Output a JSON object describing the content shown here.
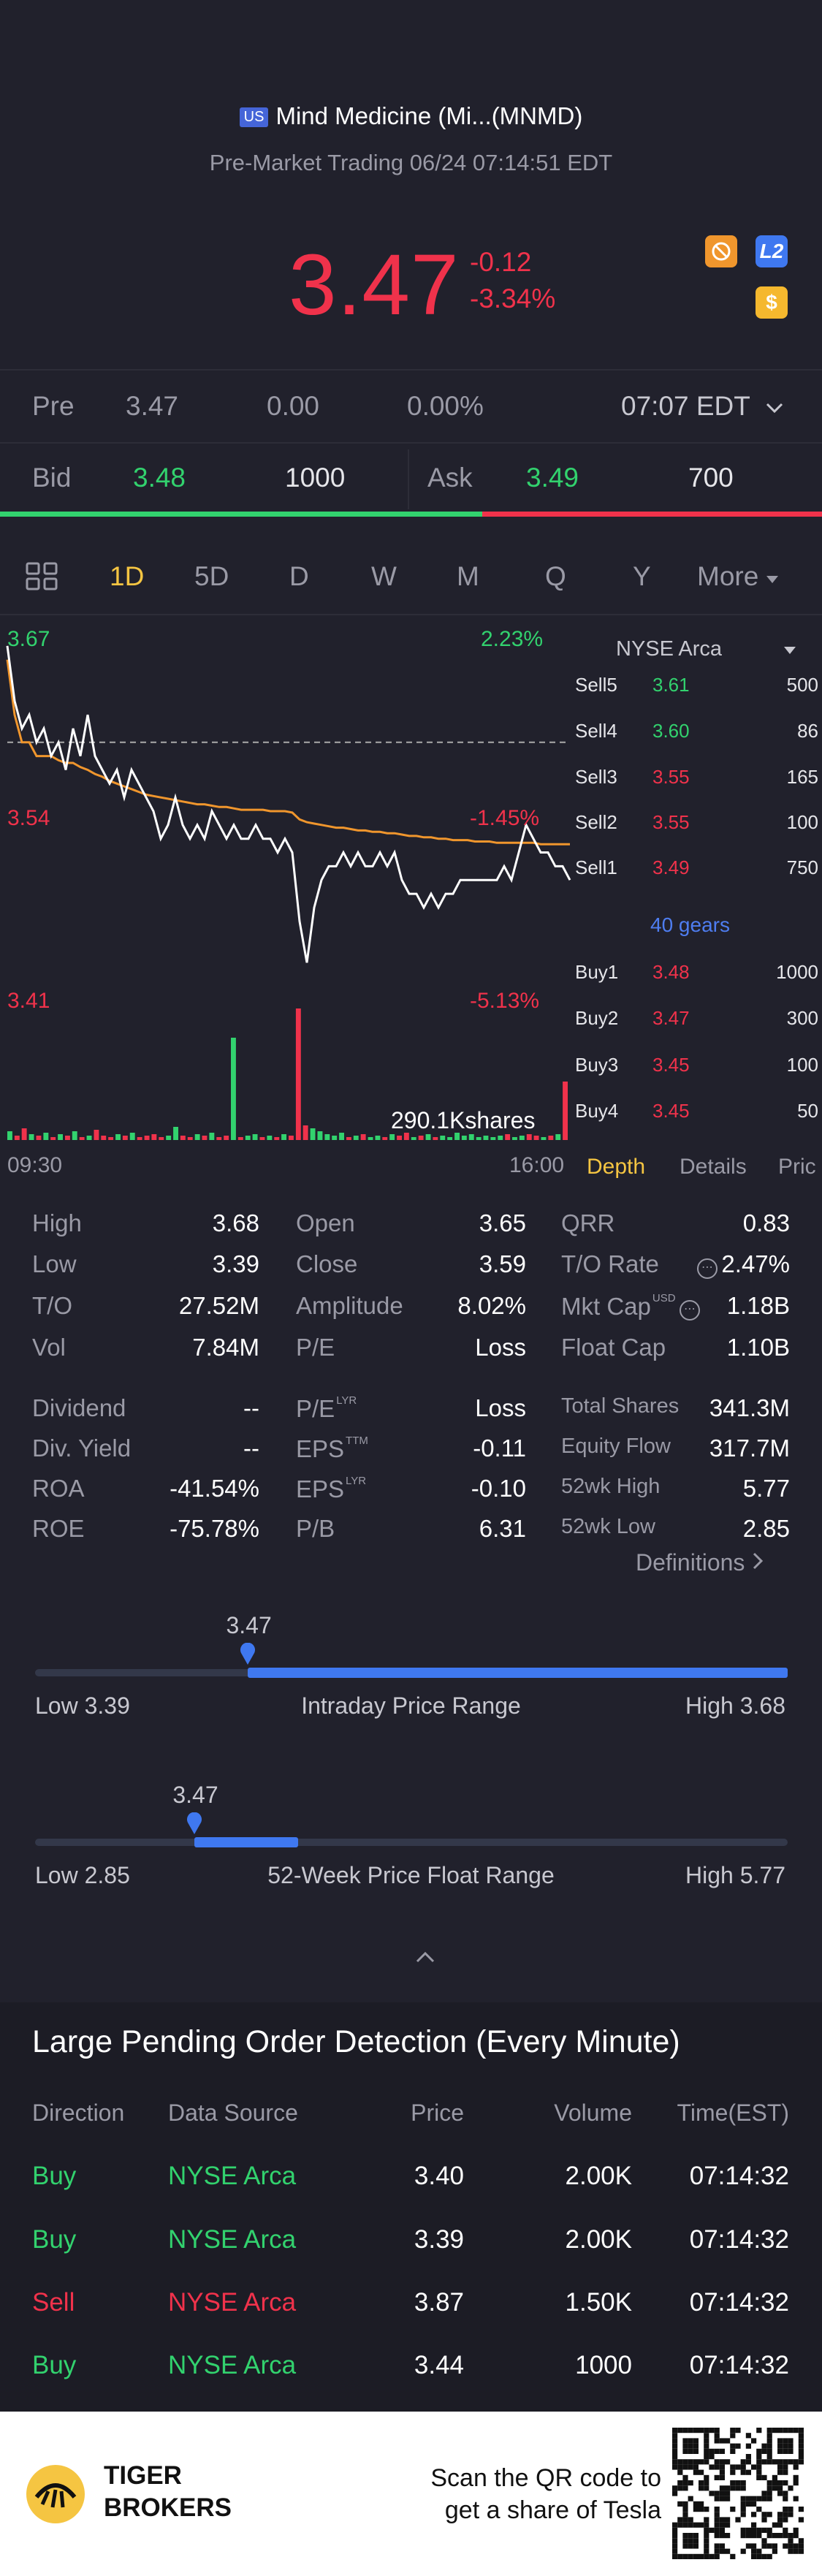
{
  "header": {
    "flag": "US",
    "title": "Mind Medicine (Mi...(MNMD)",
    "subtitle": "Pre-Market Trading 06/24 07:14:51 EDT",
    "price": "3.47",
    "change": "-0.12",
    "change_pct": "-3.34%",
    "l2_label": "L2",
    "dollar_label": "$"
  },
  "pre_row": {
    "label": "Pre",
    "price": "3.47",
    "change": "0.00",
    "pct": "0.00%",
    "time": "07:07 EDT"
  },
  "bid_row": {
    "bid_label": "Bid",
    "bid_price": "3.48",
    "bid_size": "1000",
    "ask_label": "Ask",
    "ask_price": "3.49",
    "ask_size": "700"
  },
  "tabs": [
    "1D",
    "5D",
    "D",
    "W",
    "M",
    "Q",
    "Y",
    "More"
  ],
  "active_tab": "1D",
  "chart_data": {
    "type": "line",
    "ylim": [
      3.41,
      3.67
    ],
    "reference_close": 3.59,
    "labels": {
      "y_top": "3.67",
      "y_mid": "3.54",
      "y_bot": "3.41",
      "pct_top": "2.23%",
      "pct_mid": "-1.45%",
      "pct_bot": "-5.13%",
      "volume_label": "290.1Kshares",
      "x_start": "09:30",
      "x_end": "16:00"
    },
    "price": [
      3.66,
      3.62,
      3.6,
      3.61,
      3.59,
      3.6,
      3.58,
      3.59,
      3.57,
      3.6,
      3.58,
      3.61,
      3.58,
      3.57,
      3.56,
      3.57,
      3.55,
      3.57,
      3.56,
      3.55,
      3.54,
      3.52,
      3.53,
      3.55,
      3.53,
      3.52,
      3.53,
      3.52,
      3.54,
      3.53,
      3.52,
      3.53,
      3.52,
      3.52,
      3.53,
      3.52,
      3.52,
      3.51,
      3.52,
      3.51,
      3.46,
      3.43,
      3.47,
      3.49,
      3.5,
      3.5,
      3.51,
      3.5,
      3.51,
      3.5,
      3.5,
      3.51,
      3.5,
      3.51,
      3.49,
      3.48,
      3.48,
      3.47,
      3.48,
      3.47,
      3.48,
      3.48,
      3.49,
      3.49,
      3.49,
      3.49,
      3.49,
      3.49,
      3.5,
      3.49,
      3.51,
      3.53,
      3.52,
      3.51,
      3.51,
      3.5,
      3.5,
      3.49
    ],
    "avg": [
      3.65,
      3.61,
      3.59,
      3.59,
      3.58,
      3.58,
      3.58,
      3.577,
      3.575,
      3.575,
      3.572,
      3.57,
      3.567,
      3.565,
      3.562,
      3.56,
      3.558,
      3.556,
      3.554,
      3.552,
      3.551,
      3.55,
      3.549,
      3.548,
      3.547,
      3.546,
      3.545,
      3.545,
      3.544,
      3.543,
      3.543,
      3.542,
      3.541,
      3.541,
      3.541,
      3.541,
      3.54,
      3.54,
      3.54,
      3.539,
      3.534,
      3.532,
      3.531,
      3.53,
      3.529,
      3.528,
      3.528,
      3.527,
      3.526,
      3.526,
      3.525,
      3.525,
      3.524,
      3.524,
      3.523,
      3.522,
      3.522,
      3.521,
      3.521,
      3.52,
      3.52,
      3.519,
      3.519,
      3.519,
      3.518,
      3.518,
      3.518,
      3.517,
      3.517,
      3.517,
      3.517,
      3.517,
      3.517,
      3.516,
      3.516,
      3.516,
      3.516,
      3.516
    ],
    "volume": [
      6,
      3,
      8,
      4,
      3,
      5,
      2,
      4,
      3,
      6,
      2,
      3,
      7,
      3,
      2,
      4,
      3,
      5,
      2,
      3,
      4,
      2,
      3,
      9,
      3,
      2,
      4,
      3,
      5,
      2,
      3,
      70,
      2,
      3,
      4,
      2,
      3,
      2,
      4,
      3,
      90,
      10,
      8,
      6,
      4,
      3,
      5,
      2,
      3,
      4,
      2,
      3,
      2,
      4,
      3,
      5,
      2,
      3,
      4,
      2,
      3,
      2,
      5,
      3,
      4,
      2,
      3,
      2,
      3,
      4,
      2,
      3,
      4,
      3,
      2,
      3,
      4,
      40
    ]
  },
  "order_book": {
    "exchange": "NYSE Arca",
    "sells": [
      {
        "label": "Sell5",
        "price": "3.61",
        "size": "500"
      },
      {
        "label": "Sell4",
        "price": "3.60",
        "size": "86"
      },
      {
        "label": "Sell3",
        "price": "3.55",
        "size": "165"
      },
      {
        "label": "Sell2",
        "price": "3.55",
        "size": "100"
      },
      {
        "label": "Sell1",
        "price": "3.49",
        "size": "750"
      }
    ],
    "gears": "40 gears",
    "buys": [
      {
        "label": "Buy1",
        "price": "3.48",
        "size": "1000"
      },
      {
        "label": "Buy2",
        "price": "3.47",
        "size": "300"
      },
      {
        "label": "Buy3",
        "price": "3.45",
        "size": "100"
      },
      {
        "label": "Buy4",
        "price": "3.45",
        "size": "50"
      }
    ],
    "tabs": [
      "Depth",
      "Details",
      "Pric"
    ]
  },
  "stats": {
    "col1": [
      {
        "label": "High",
        "value": "3.68"
      },
      {
        "label": "Low",
        "value": "3.39"
      },
      {
        "label": "T/O",
        "value": "27.52M"
      },
      {
        "label": "Vol",
        "value": "7.84M"
      }
    ],
    "col2": [
      {
        "label": "Open",
        "value": "3.65"
      },
      {
        "label": "Close",
        "value": "3.59"
      },
      {
        "label": "Amplitude",
        "value": "8.02%"
      },
      {
        "label": "P/E",
        "value": "Loss"
      }
    ],
    "col3": [
      {
        "label": "QRR",
        "value": "0.83"
      },
      {
        "label": "T/O Rate",
        "value": "2.47%"
      },
      {
        "label": "Mkt Cap",
        "value": "1.18B",
        "sup": "USD"
      },
      {
        "label": "Float Cap",
        "value": "1.10B"
      }
    ],
    "col1b": [
      {
        "label": "Dividend",
        "value": "--"
      },
      {
        "label": "Div. Yield",
        "value": "--"
      },
      {
        "label": "ROA",
        "value": "-41.54%"
      },
      {
        "label": "ROE",
        "value": "-75.78%"
      }
    ],
    "col2b": [
      {
        "label": "P/E",
        "sup": "LYR",
        "value": "Loss"
      },
      {
        "label": "EPS",
        "sup": "TTM",
        "value": "-0.11"
      },
      {
        "label": "EPS",
        "sup": "LYR",
        "value": "-0.10"
      },
      {
        "label": "P/B",
        "value": "6.31"
      }
    ],
    "col3b": [
      {
        "label": "Total Shares",
        "value": "341.3M"
      },
      {
        "label": "Equity Flow",
        "value": "317.7M"
      },
      {
        "label": "52wk High",
        "value": "5.77"
      },
      {
        "label": "52wk Low",
        "value": "2.85"
      }
    ],
    "definitions": "Definitions"
  },
  "intraday_range": {
    "marker": "3.47",
    "low": "Low 3.39",
    "title": "Intraday Price Range",
    "high": "High 3.68",
    "fill_start": 0.283,
    "fill_end": 1.0,
    "marker_pos": 0.283
  },
  "week52_range": {
    "marker": "3.47",
    "low": "Low 2.85",
    "title": "52-Week Price Float Range",
    "high": "High 5.77",
    "fill_start": 0.212,
    "fill_end": 0.35,
    "marker_pos": 0.212
  },
  "large_orders": {
    "title": "Large Pending Order Detection (Every Minute)",
    "headers": [
      "Direction",
      "Data Source",
      "Price",
      "Volume",
      "Time(EST)"
    ],
    "rows": [
      {
        "direction": "Buy",
        "source": "NYSE Arca",
        "price": "3.40",
        "volume": "2.00K",
        "time": "07:14:32"
      },
      {
        "direction": "Buy",
        "source": "NYSE Arca",
        "price": "3.39",
        "volume": "2.00K",
        "time": "07:14:32"
      },
      {
        "direction": "Sell",
        "source": "NYSE Arca",
        "price": "3.87",
        "volume": "1.50K",
        "time": "07:14:32"
      },
      {
        "direction": "Buy",
        "source": "NYSE Arca",
        "price": "3.44",
        "volume": "1000",
        "time": "07:14:32"
      }
    ]
  },
  "footer": {
    "brand_line1": "TIGER",
    "brand_line2": "BROKERS",
    "qr_line1": "Scan the QR code to",
    "qr_line2": "get a share of Tesla"
  },
  "colors": {
    "up": "#32d26e",
    "down": "#f0324b",
    "accent": "#f5c542",
    "blue": "#4e7df0",
    "avg_line": "#f0962d"
  }
}
